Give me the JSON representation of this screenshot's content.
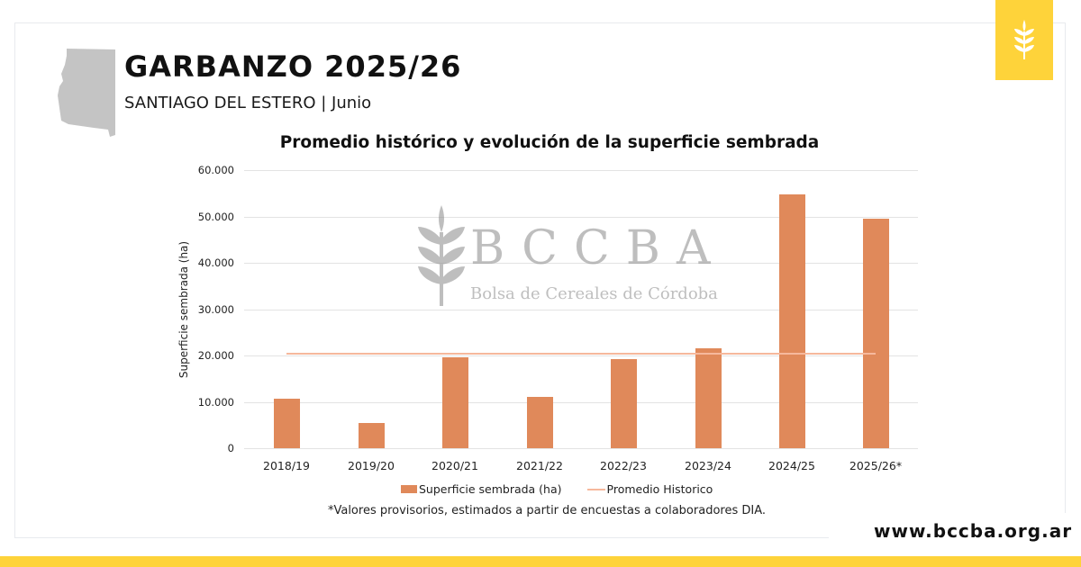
{
  "header": {
    "title": "GARBANZO 2025/26",
    "subtitle": "SANTIAGO DEL ESTERO | Junio",
    "province_icon": "santiago-del-estero-map-icon",
    "logo_icon": "wheat-icon"
  },
  "watermark": {
    "letters": "BCCBA",
    "subtitle": "Bolsa de Cereales de Córdoba"
  },
  "colors": {
    "brand_yellow": "#fed33a",
    "bar": "#e0895a",
    "avg_line": "#f6b89c",
    "watermark_gray": "#8a8a8a"
  },
  "chart_data": {
    "type": "bar",
    "title": "Promedio histórico y evolución de la superficie sembrada",
    "xlabel": "",
    "ylabel": "Superficie sembrada (ha)",
    "ylim": [
      0,
      60000
    ],
    "yticks": [
      "0",
      "10.000",
      "20.000",
      "30.000",
      "40.000",
      "50.000",
      "60.000"
    ],
    "grid": true,
    "legend_position": "bottom",
    "categories": [
      "2018/19",
      "2019/20",
      "2020/21",
      "2021/22",
      "2022/23",
      "2023/24",
      "2024/25",
      "2025/26*"
    ],
    "series": [
      {
        "name": "Superficie sembrada (ha)",
        "type": "bar",
        "values": [
          10700,
          5400,
          19600,
          11100,
          19200,
          21600,
          54800,
          49500
        ]
      },
      {
        "name": "Promedio Historico",
        "type": "line",
        "values": [
          20400,
          20400,
          20400,
          20400,
          20400,
          20400,
          20400,
          20400
        ]
      }
    ],
    "legend": [
      "Superficie sembrada (ha)",
      "Promedio Historico"
    ],
    "annotation": "*Valores provisorios, estimados a partir de encuestas a colaboradores DIA."
  },
  "footer": {
    "url": "www.bccba.org.ar"
  }
}
